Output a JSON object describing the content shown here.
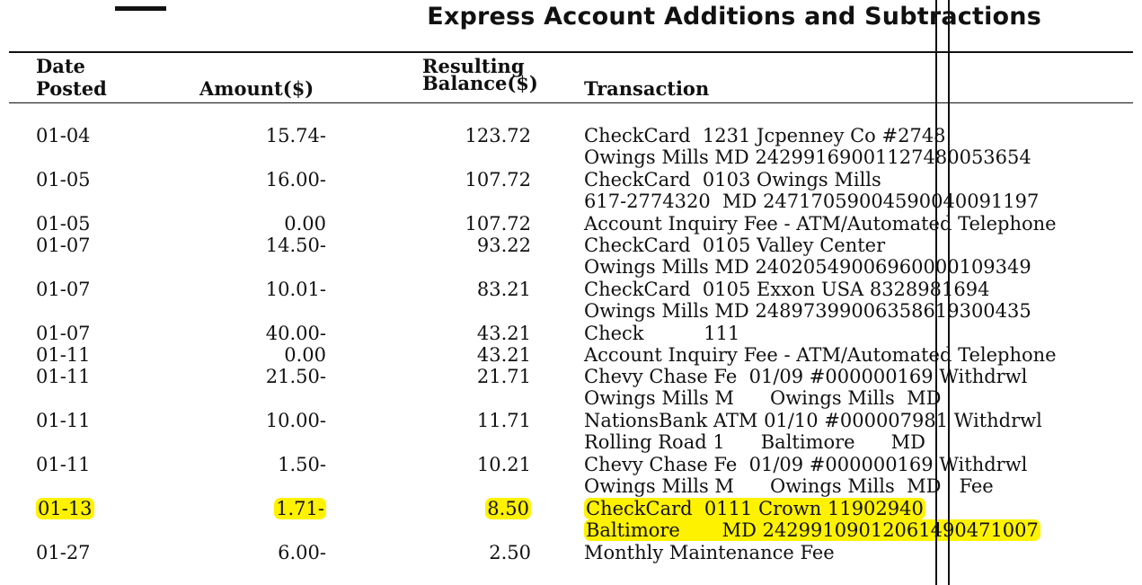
{
  "page": {
    "title": "Express Account Additions and Subtractions"
  },
  "headers": {
    "date_line1": "Date",
    "date_line2": "Posted",
    "amount": "Amount($)",
    "balance_line1": "Resulting",
    "balance_line2": "Balance($)",
    "transaction": "Transaction"
  },
  "rows": [
    {
      "date": "01-04",
      "amount": "15.74-",
      "balance": "123.72",
      "tx1": "CheckCard  1231 Jcpenney Co #2748",
      "tx2": "Owings Mills MD 24299169001127480053654",
      "highlight": false
    },
    {
      "date": "01-05",
      "amount": "16.00-",
      "balance": "107.72",
      "tx1": "CheckCard  0103 Owings Mills",
      "tx2": "617-2774320  MD 24717059004590040091197",
      "highlight": false
    },
    {
      "date": "01-05",
      "amount": "0.00",
      "balance": "107.72",
      "tx1": "Account Inquiry Fee - ATM/Automated Telephone",
      "tx2": "",
      "highlight": false
    },
    {
      "date": "01-07",
      "amount": "14.50-",
      "balance": "93.22",
      "tx1": "CheckCard  0105 Valley Center",
      "tx2": "Owings Mills MD 24020549006960000109349",
      "highlight": false
    },
    {
      "date": "01-07",
      "amount": "10.01-",
      "balance": "83.21",
      "tx1": "CheckCard  0105 Exxon USA 8328981694",
      "tx2": "Owings Mills MD 24897399006358619300435",
      "highlight": false
    },
    {
      "date": "01-07",
      "amount": "40.00-",
      "balance": "43.21",
      "tx1": "Check          111",
      "tx2": "",
      "highlight": false
    },
    {
      "date": "01-11",
      "amount": "0.00",
      "balance": "43.21",
      "tx1": "Account Inquiry Fee - ATM/Automated Telephone",
      "tx2": "",
      "highlight": false
    },
    {
      "date": "01-11",
      "amount": "21.50-",
      "balance": "21.71",
      "tx1": "Chevy Chase Fe  01/09 #000000169 Withdrwl",
      "tx2": "Owings Mills M      Owings Mills  MD",
      "highlight": false
    },
    {
      "date": "01-11",
      "amount": "10.00-",
      "balance": "11.71",
      "tx1": "NationsBank ATM 01/10 #000007981 Withdrwl",
      "tx2": "Rolling Road 1      Baltimore      MD",
      "highlight": false
    },
    {
      "date": "01-11",
      "amount": "1.50-",
      "balance": "10.21",
      "tx1": "Chevy Chase Fe  01/09 #000000169 Withdrwl",
      "tx2": "Owings Mills M      Owings Mills  MD   Fee",
      "highlight": false
    },
    {
      "date": "01-13",
      "amount": "1.71-",
      "balance": "8.50",
      "tx1": "CheckCard  0111 Crown 11902940",
      "tx2": "Baltimore       MD 24299109012061490471007",
      "highlight": true
    },
    {
      "date": "01-27",
      "amount": "6.00-",
      "balance": "2.50",
      "tx1": "Monthly Maintenance Fee",
      "tx2": "",
      "highlight": false
    }
  ]
}
